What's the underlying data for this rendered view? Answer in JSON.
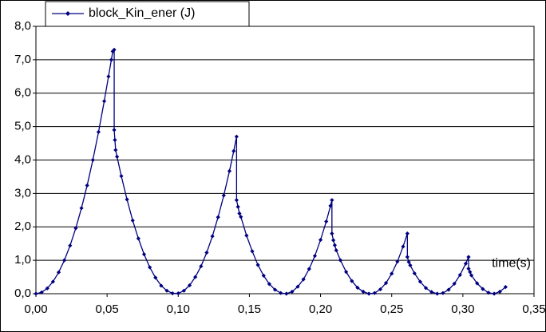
{
  "chart_data": {
    "type": "line",
    "x_label": "time(s)",
    "xlim": [
      0,
      0.35
    ],
    "ylim": [
      0,
      8
    ],
    "xticks": [
      {
        "value": 0,
        "label": "0,00"
      },
      {
        "value": 0.05,
        "label": "0,05"
      },
      {
        "value": 0.1,
        "label": "0,10"
      },
      {
        "value": 0.15,
        "label": "0,15"
      },
      {
        "value": 0.2,
        "label": "0,20"
      },
      {
        "value": 0.25,
        "label": "0,25"
      },
      {
        "value": 0.3,
        "label": "0,30"
      },
      {
        "value": 0.35,
        "label": "0,35"
      }
    ],
    "yticks": [
      {
        "value": 0,
        "label": "0,0"
      },
      {
        "value": 1,
        "label": "1,0"
      },
      {
        "value": 2,
        "label": "2,0"
      },
      {
        "value": 3,
        "label": "3,0"
      },
      {
        "value": 4,
        "label": "4,0"
      },
      {
        "value": 5,
        "label": "5,0"
      },
      {
        "value": 6,
        "label": "6,0"
      },
      {
        "value": 7,
        "label": "7,0"
      },
      {
        "value": 8,
        "label": "8,0"
      }
    ],
    "grid": true,
    "legend": "top-left",
    "x": [
      0,
      0.004,
      0.008,
      0.012,
      0.016,
      0.02,
      0.024,
      0.028,
      0.032,
      0.036,
      0.04,
      0.044,
      0.048,
      0.051,
      0.053,
      0.054,
      0.055,
      0.055,
      0.0555,
      0.056,
      0.057,
      0.06,
      0.064,
      0.068,
      0.072,
      0.076,
      0.08,
      0.084,
      0.088,
      0.092,
      0.096,
      0.1,
      0.104,
      0.108,
      0.112,
      0.116,
      0.12,
      0.124,
      0.128,
      0.132,
      0.136,
      0.139,
      0.141,
      0.141,
      0.142,
      0.143,
      0.144,
      0.148,
      0.152,
      0.156,
      0.16,
      0.164,
      0.168,
      0.172,
      0.176,
      0.18,
      0.184,
      0.188,
      0.192,
      0.196,
      0.2,
      0.204,
      0.207,
      0.208,
      0.208,
      0.209,
      0.21,
      0.211,
      0.214,
      0.218,
      0.222,
      0.226,
      0.23,
      0.234,
      0.238,
      0.242,
      0.246,
      0.25,
      0.254,
      0.258,
      0.261,
      0.261,
      0.262,
      0.263,
      0.266,
      0.27,
      0.274,
      0.278,
      0.282,
      0.286,
      0.29,
      0.294,
      0.298,
      0.302,
      0.304,
      0.304,
      0.305,
      0.306,
      0.31,
      0.314,
      0.318,
      0.322,
      0.326,
      0.33
    ],
    "series": [
      {
        "name": "block_Kin_ener (J)",
        "color": "#000080",
        "values": [
          0,
          0.04,
          0.16,
          0.36,
          0.64,
          1.0,
          1.44,
          1.96,
          2.56,
          3.24,
          4.0,
          4.84,
          5.76,
          6.5,
          7.0,
          7.25,
          7.3,
          4.9,
          4.6,
          4.3,
          4.1,
          3.52,
          2.82,
          2.19,
          1.65,
          1.18,
          0.79,
          0.48,
          0.24,
          0.09,
          0.01,
          0.01,
          0.09,
          0.25,
          0.5,
          0.82,
          1.23,
          1.72,
          2.29,
          2.94,
          3.67,
          4.27,
          4.7,
          2.8,
          2.6,
          2.4,
          2.3,
          1.74,
          1.27,
          0.86,
          0.54,
          0.29,
          0.12,
          0.02,
          0,
          0.06,
          0.21,
          0.43,
          0.74,
          1.13,
          1.61,
          2.16,
          2.63,
          2.8,
          1.8,
          1.6,
          1.45,
          1.3,
          1.0,
          0.65,
          0.38,
          0.18,
          0.06,
          0,
          0.02,
          0.13,
          0.32,
          0.6,
          0.96,
          1.41,
          1.8,
          1.1,
          0.95,
          0.85,
          0.61,
          0.36,
          0.17,
          0.05,
          0,
          0.02,
          0.12,
          0.3,
          0.56,
          0.9,
          1.1,
          0.75,
          0.65,
          0.55,
          0.31,
          0.14,
          0.03,
          0,
          0.06,
          0.2
        ]
      }
    ]
  }
}
